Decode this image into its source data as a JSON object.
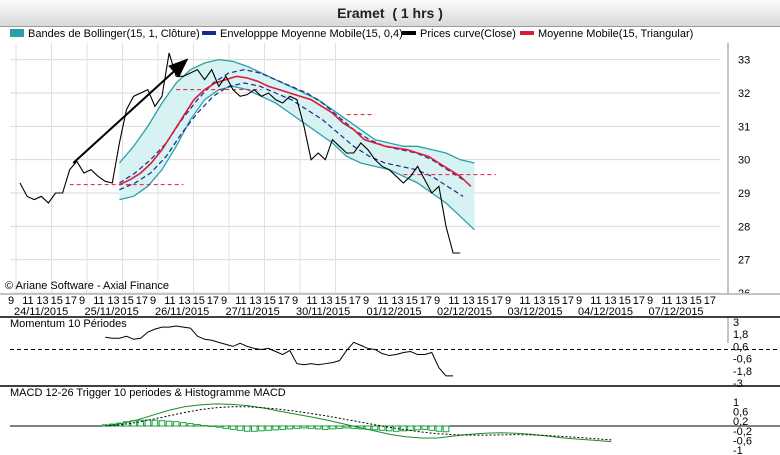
{
  "title": "Eramet  ( 1 hrs )",
  "legend": [
    {
      "label": "Bandes de Bollinger(15, 1, Clôture)",
      "color": "#2aa0a8"
    },
    {
      "label": "Envelopppe Moyenne Mobile(15, 0,4)",
      "color": "#1a2a8a"
    },
    {
      "label": "Prices curve(Close)",
      "color": "#000000"
    },
    {
      "label": "Moyenne Mobile(15, Triangular)",
      "color": "#e0193a"
    }
  ],
  "copyright": "© Ariane Software - Axial Finance",
  "time_axis": {
    "hour_labels": [
      "9",
      "11",
      "13",
      "15",
      "17",
      "9",
      "11",
      "13",
      "15",
      "17",
      "9",
      "11",
      "13",
      "15",
      "17",
      "9",
      "11",
      "13",
      "15",
      "17",
      "9",
      "11",
      "13",
      "15",
      "17",
      "9",
      "11",
      "13",
      "15",
      "17",
      "9",
      "11",
      "13",
      "15",
      "17",
      "9",
      "11",
      "13",
      "15",
      "17",
      "9",
      "11",
      "13",
      "15",
      "17",
      "9",
      "11",
      "13",
      "15",
      "17"
    ],
    "date_labels": [
      "24/11/2015",
      "25/11/2015",
      "26/11/2015",
      "27/11/2015",
      "30/11/2015",
      "01/12/2015",
      "02/12/2015",
      "03/12/2015",
      "04/12/2015",
      "07/12/2015"
    ]
  },
  "chart_data": [
    {
      "type": "line",
      "panel": "price",
      "x_unit": "hourly bars (day index 0-9, 5 bars per day)",
      "ylim": [
        26,
        33.5
      ],
      "y_ticks": [
        "26",
        "27",
        "28",
        "29",
        "30",
        "31",
        "32",
        "33"
      ],
      "grid": true,
      "series": [
        {
          "name": "Prices curve(Close)",
          "color": "#000000",
          "values": [
            29.3,
            28.9,
            28.8,
            28.9,
            28.7,
            29.0,
            29.0,
            29.7,
            29.95,
            29.6,
            29.7,
            29.5,
            29.35,
            29.3,
            30.5,
            31.5,
            31.9,
            32.0,
            32.1,
            31.6,
            31.9,
            33.2,
            32.5,
            32.5,
            32.6,
            32.7,
            32.4,
            32.7,
            32.2,
            32.5,
            32.1,
            31.9,
            31.95,
            32.1,
            31.9,
            32.0,
            31.8,
            31.7,
            31.9,
            31.8,
            31.0,
            30.0,
            30.2,
            30.0,
            30.6,
            30.4,
            30.2,
            30.2,
            30.5,
            30.3,
            30.0,
            29.8,
            29.7,
            29.5,
            29.3,
            29.5,
            29.8,
            29.4,
            29.0,
            29.2,
            28.0,
            27.2,
            27.2
          ],
          "start_index": 0
        },
        {
          "name": "Moyenne Mobile(15, Triangular)",
          "color": "#e0193a",
          "values": [
            29.25,
            29.4,
            29.6,
            29.9,
            30.3,
            30.8,
            31.3,
            31.8,
            32.1,
            32.3,
            32.4,
            32.5,
            32.45,
            32.35,
            32.2,
            32.1,
            32.0,
            31.9,
            31.8,
            31.6,
            31.4,
            31.1,
            30.9,
            30.6,
            30.5,
            30.4,
            30.35,
            30.3,
            30.2,
            30.1,
            29.9,
            29.7,
            29.5,
            29.2
          ],
          "start_index": 14,
          "step": 1.5
        }
      ],
      "bollinger": {
        "upper": [
          29.9,
          30.4,
          31.0,
          31.7,
          32.3,
          32.7,
          32.9,
          33.0,
          32.95,
          32.8,
          32.6,
          32.4,
          32.2,
          32.0,
          31.8,
          31.5,
          31.2,
          30.9,
          30.6,
          30.5,
          30.4,
          30.4,
          30.3,
          30.2,
          30.0,
          29.9
        ],
        "lower": [
          28.8,
          28.9,
          29.2,
          29.7,
          30.4,
          31.2,
          31.8,
          32.1,
          32.2,
          32.1,
          31.9,
          31.7,
          31.4,
          31.1,
          30.8,
          30.5,
          30.1,
          29.9,
          29.8,
          29.7,
          29.5,
          29.3,
          29.0,
          28.7,
          28.3,
          27.9
        ],
        "start_index": 14,
        "step": 2
      },
      "envelope": {
        "upper": [
          29.3,
          29.6,
          30.0,
          30.5,
          31.2,
          31.8,
          32.3,
          32.6,
          32.7,
          32.6,
          32.4,
          32.2,
          32.0,
          31.7,
          31.3,
          30.9,
          30.6,
          30.4,
          30.3,
          30.2,
          30.0,
          29.7,
          29.4
        ],
        "lower": [
          29.1,
          29.3,
          29.6,
          30.1,
          30.8,
          31.4,
          31.9,
          32.2,
          32.3,
          32.2,
          32.0,
          31.8,
          31.5,
          31.2,
          30.8,
          30.4,
          30.1,
          29.9,
          29.8,
          29.7,
          29.5,
          29.2,
          28.9
        ],
        "start_index": 14,
        "step": 2.2
      },
      "annotations": [
        {
          "kind": "arrow",
          "from": [
            7.5,
            29.9
          ],
          "to": [
            23.5,
            33.0
          ]
        },
        {
          "kind": "level",
          "y": 29.25,
          "from": 7,
          "to": 23
        },
        {
          "kind": "level",
          "y": 32.1,
          "from": 22,
          "to": 34
        },
        {
          "kind": "level",
          "y": 31.35,
          "from": 46,
          "to": 50
        },
        {
          "kind": "level",
          "y": 29.55,
          "from": 54,
          "to": 67
        }
      ]
    },
    {
      "type": "line",
      "panel": "momentum",
      "title": "Momentum 10 Périodes",
      "y_ticks": [
        "3",
        "1,8",
        "0,6",
        "-0,6",
        "-1,8",
        "-3"
      ],
      "ylim": [
        -3,
        3
      ],
      "series": [
        {
          "name": "Momentum 10 Périodes",
          "color": "#000000",
          "values": [
            1.5,
            1.4,
            1.4,
            1.6,
            1.3,
            1.4,
            2.0,
            2.3,
            2.5,
            2.5,
            2.6,
            2.5,
            2.4,
            1.6,
            1.3,
            1.2,
            1.0,
            0.8,
            0.6,
            0.9,
            0.6,
            0.4,
            0.3,
            0.4,
            0.1,
            -0.2,
            0.2,
            -1.1,
            -1.2,
            -1.1,
            -1.2,
            -1.1,
            -1.0,
            -0.8,
            0.2,
            1.0,
            0.7,
            0.4,
            0.3,
            -0.1,
            -0.3,
            -0.2,
            0.0,
            0.1,
            -0.2,
            -0.2,
            0.0,
            -1.5,
            -2.3,
            -2.3
          ],
          "start_index": 12
        }
      ],
      "reference_line": 0.3
    },
    {
      "type": "bar",
      "panel": "macd",
      "title": "MACD 12-26  Trigger 10 periodes & Histogramme MACD",
      "y_ticks": [
        "1",
        "0,6",
        "0,2",
        "-0,2",
        "-0,6",
        "-1"
      ],
      "ylim": [
        -1,
        1
      ],
      "histogram": [
        0.05,
        0.08,
        0.12,
        0.18,
        0.22,
        0.24,
        0.25,
        0.24,
        0.22,
        0.2,
        0.18,
        0.14,
        0.1,
        0.06,
        0.02,
        -0.02,
        -0.05,
        -0.1,
        -0.14,
        -0.18,
        -0.22,
        -0.22,
        -0.2,
        -0.18,
        -0.16,
        -0.14,
        -0.12,
        -0.1,
        -0.08,
        -0.1,
        -0.12,
        -0.14,
        -0.12,
        -0.1,
        -0.08,
        -0.1,
        -0.12,
        -0.14,
        -0.16,
        -0.18,
        -0.2,
        -0.22,
        -0.2,
        -0.18,
        -0.16,
        -0.14,
        -0.18,
        -0.22,
        -0.24
      ],
      "macd": [
        0.0,
        0.1,
        0.25,
        0.45,
        0.65,
        0.8,
        0.88,
        0.92,
        0.9,
        0.85,
        0.75,
        0.62,
        0.5,
        0.38,
        0.25,
        0.1,
        -0.05,
        -0.2,
        -0.35,
        -0.45,
        -0.5,
        -0.5,
        -0.42,
        -0.35,
        -0.3,
        -0.28,
        -0.3,
        -0.35,
        -0.42,
        -0.5,
        -0.55,
        -0.6,
        -0.65
      ],
      "trigger": [
        0.0,
        0.05,
        0.15,
        0.28,
        0.42,
        0.56,
        0.68,
        0.76,
        0.8,
        0.8,
        0.76,
        0.7,
        0.62,
        0.52,
        0.42,
        0.3,
        0.18,
        0.06,
        -0.06,
        -0.16,
        -0.25,
        -0.32,
        -0.36,
        -0.38,
        -0.38,
        -0.37,
        -0.36,
        -0.37,
        -0.4,
        -0.44,
        -0.48,
        -0.53,
        -0.58
      ],
      "start_index": 12,
      "hist_color": "#19a13a",
      "macd_color": "#1c8c2c",
      "trigger_color": "#000000"
    }
  ]
}
